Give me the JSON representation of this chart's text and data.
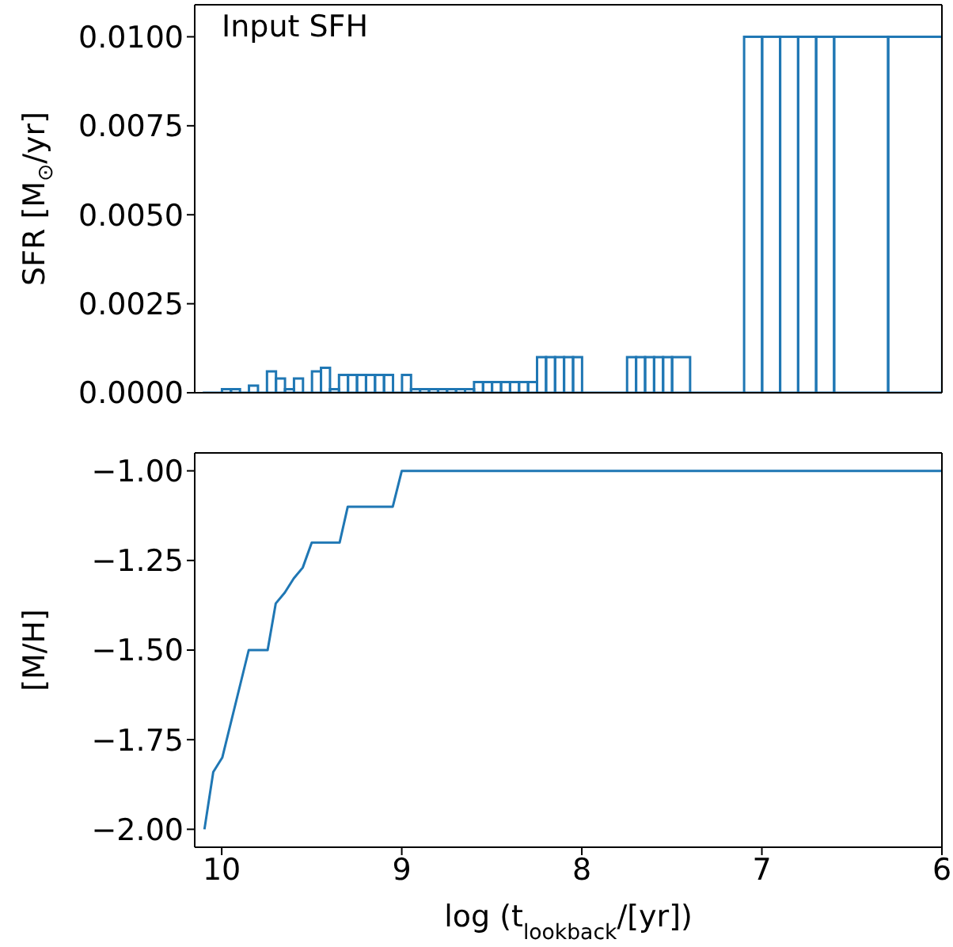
{
  "chart_data": [
    {
      "type": "histogram",
      "annotations": [
        "Input SFH"
      ],
      "ylabel": "SFR [M$_{⊙}$/yr]",
      "color": "#1f77b4",
      "bins": [
        10.1,
        10.0,
        9.95,
        9.9,
        9.85,
        9.8,
        9.75,
        9.7,
        9.65,
        9.6,
        9.55,
        9.5,
        9.45,
        9.4,
        9.35,
        9.3,
        9.25,
        9.2,
        9.15,
        9.1,
        9.05,
        9.0,
        8.95,
        8.9,
        8.85,
        8.8,
        8.75,
        8.7,
        8.65,
        8.6,
        8.55,
        8.5,
        8.45,
        8.4,
        8.35,
        8.3,
        8.25,
        8.2,
        8.15,
        8.1,
        8.05,
        8.0,
        7.75,
        7.7,
        7.65,
        7.6,
        7.55,
        7.5,
        7.4,
        7.1,
        7.0,
        6.9,
        6.8,
        6.7,
        6.6,
        6.3,
        6.0
      ],
      "values": [
        0,
        0.0001,
        0.0001,
        0,
        0.0002,
        0,
        0.0006,
        0.0004,
        0.0001,
        0.0004,
        0,
        0.0006,
        0.0007,
        0.0001,
        0.0005,
        0.0005,
        0.0005,
        0.0005,
        0.0005,
        0.0005,
        0,
        0.0005,
        0.0001,
        0.0001,
        0.0001,
        0.0001,
        0.0001,
        0.0001,
        0.0001,
        0.0003,
        0.0003,
        0.0003,
        0.0003,
        0.0003,
        0.0003,
        0.0003,
        0.001,
        0.001,
        0.001,
        0.001,
        0.001,
        0,
        0.001,
        0.001,
        0.001,
        0.001,
        0.001,
        0.001,
        0,
        0.01,
        0.01,
        0.01,
        0.01,
        0.01,
        0.01,
        0.01
      ],
      "xlim": [
        10.15,
        6
      ],
      "xticks": [
        10,
        9,
        8,
        7,
        6
      ],
      "ylim": [
        0,
        0.0109
      ],
      "yticks": [
        {
          "value": 0,
          "label": "0.0000"
        },
        {
          "value": 0.0025,
          "label": "0.0025"
        },
        {
          "value": 0.005,
          "label": "0.0050"
        },
        {
          "value": 0.0075,
          "label": "0.0075"
        },
        {
          "value": 0.01,
          "label": "0.0100"
        }
      ],
      "tick_labels": "y"
    },
    {
      "type": "line",
      "xlabel": "log (t$_{lookback}$/[yr])",
      "ylabel": "[M/H]",
      "color": "#1f77b4",
      "x": [
        10.096,
        10.047,
        9.997,
        9.85,
        9.745,
        9.7,
        9.65,
        9.6,
        9.55,
        9.5,
        9.345,
        9.3,
        9.05,
        9.0,
        6.0
      ],
      "values": [
        -2.0,
        -1.84,
        -1.8,
        -1.5,
        -1.5,
        -1.37,
        -1.34,
        -1.3,
        -1.27,
        -1.2,
        -1.2,
        -1.1,
        -1.1,
        -1.0,
        -1.0
      ],
      "xlim": [
        10.15,
        6
      ],
      "xticks": [
        10,
        9,
        8,
        7,
        6
      ],
      "ylim": [
        -2.05,
        -0.95
      ],
      "yticks": [
        {
          "value": -2,
          "label": "−2.00"
        },
        {
          "value": -1.75,
          "label": "−1.75"
        },
        {
          "value": -1.5,
          "label": "−1.50"
        },
        {
          "value": -1.25,
          "label": "−1.25"
        },
        {
          "value": -1,
          "label": "−1.00"
        }
      ]
    }
  ]
}
